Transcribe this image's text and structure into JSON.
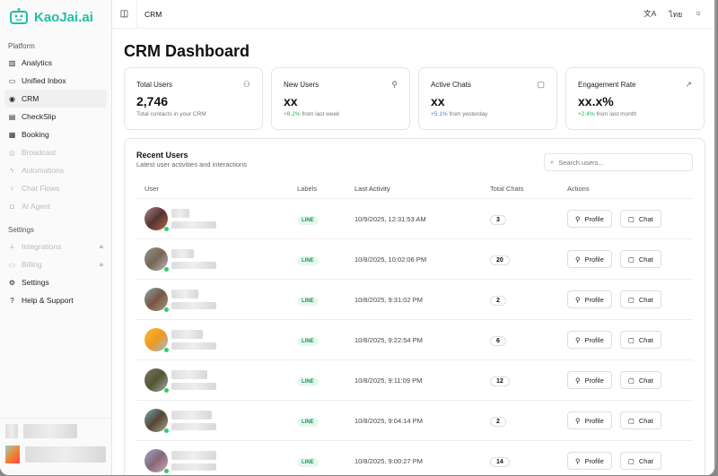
{
  "app": {
    "name": "KaoJai.ai",
    "accent": "#1fbfa6"
  },
  "sidebar": {
    "platform_label": "Platform",
    "platform": [
      {
        "label": "Analytics",
        "icon": "bar-chart-icon"
      },
      {
        "label": "Unified Inbox",
        "icon": "inbox-icon"
      },
      {
        "label": "CRM",
        "icon": "user-circle-icon",
        "active": true
      },
      {
        "label": "CheckSlip",
        "icon": "receipt-icon"
      },
      {
        "label": "Booking",
        "icon": "calendar-icon"
      },
      {
        "label": "Broadcast",
        "icon": "broadcast-icon",
        "disabled": true
      },
      {
        "label": "Automations",
        "icon": "bolt-icon",
        "disabled": true
      },
      {
        "label": "Chat Flows",
        "icon": "flow-icon",
        "disabled": true
      },
      {
        "label": "AI Agent",
        "icon": "bot-icon",
        "disabled": true
      }
    ],
    "settings_label": "Settings",
    "settings": [
      {
        "label": "Integrations",
        "icon": "plug-icon",
        "disabled": true,
        "locked": true
      },
      {
        "label": "Billing",
        "icon": "card-icon",
        "disabled": true,
        "locked": true
      },
      {
        "label": "Settings",
        "icon": "gear-icon"
      },
      {
        "label": "Help & Support",
        "icon": "help-icon"
      }
    ]
  },
  "header": {
    "breadcrumb": "CRM",
    "language": "ไทย"
  },
  "page": {
    "title": "CRM Dashboard"
  },
  "stats": [
    {
      "title": "Total Users",
      "value": "2,746",
      "change": "",
      "note": "Total contacts in your CRM",
      "icon": "users-icon"
    },
    {
      "title": "New Users",
      "value": "xx",
      "change": "+8.2%",
      "note": "from last week",
      "icon": "user-plus-icon",
      "color": "#22b45a"
    },
    {
      "title": "Active Chats",
      "value": "xx",
      "change": "+5.1%",
      "note": "from yesterday",
      "icon": "message-icon",
      "color": "#4a7bd9"
    },
    {
      "title": "Engagement Rate",
      "value": "xx.x%",
      "change": "+2.4%",
      "note": "from last month",
      "icon": "trending-up-icon",
      "color": "#22b45a"
    }
  ],
  "recent": {
    "title": "Recent Users",
    "subtitle": "Latest user activities and interactions",
    "search_placeholder": "Search users...",
    "columns": [
      "User",
      "Labels",
      "Last Activity",
      "Total Chats",
      "Actions"
    ],
    "profile_label": "Profile",
    "chat_label": "Chat",
    "rows": [
      {
        "label": "LINE",
        "activity": "10/9/2025, 12:31:53 AM",
        "chats": "3"
      },
      {
        "label": "LINE",
        "activity": "10/8/2025, 10:02:06 PM",
        "chats": "20"
      },
      {
        "label": "LINE",
        "activity": "10/8/2025, 9:31:02 PM",
        "chats": "2"
      },
      {
        "label": "LINE",
        "activity": "10/8/2025, 9:22:54 PM",
        "chats": "6"
      },
      {
        "label": "LINE",
        "activity": "10/8/2025, 9:11:09 PM",
        "chats": "12"
      },
      {
        "label": "LINE",
        "activity": "10/8/2025, 9:04:14 PM",
        "chats": "2"
      },
      {
        "label": "LINE",
        "activity": "10/8/2025, 9:00:27 PM",
        "chats": "14"
      }
    ]
  }
}
